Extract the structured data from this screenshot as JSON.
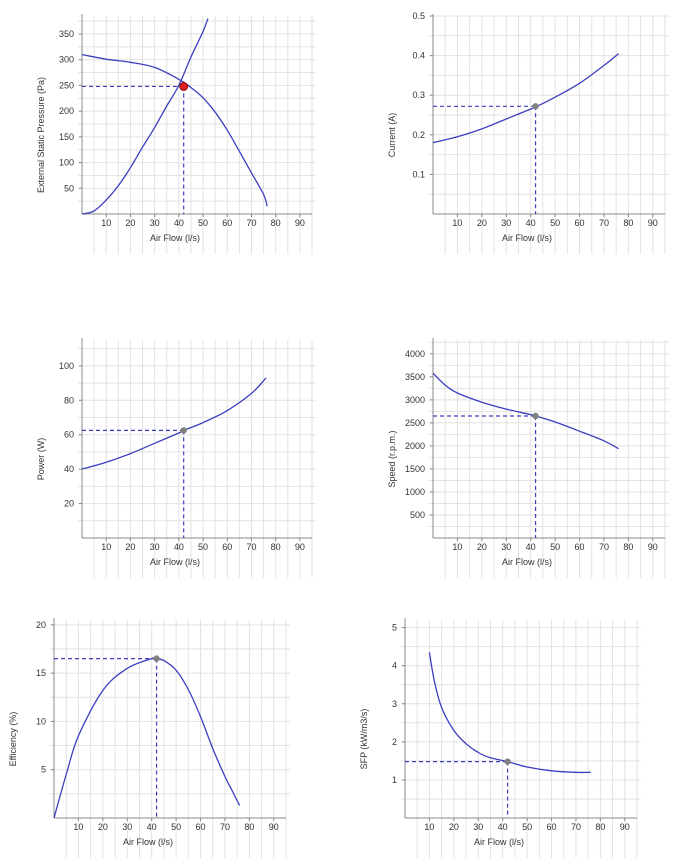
{
  "colors": {
    "curve": "#3b3fbf",
    "grid": "#e2e2e2",
    "axis": "#888888",
    "system_point": "#e02020",
    "duty_point": "#808080",
    "text": "#333333"
  },
  "chart_data": [
    {
      "type": "line",
      "xlabel": "Air Flow (l/s)",
      "ylabel": "External Static Pressure (Pa)",
      "xlim": [
        0,
        95
      ],
      "ylim": [
        0,
        385
      ],
      "xticks": [
        10,
        20,
        30,
        40,
        50,
        60,
        70,
        80,
        90
      ],
      "yticks": [
        50,
        100,
        150,
        200,
        250,
        300,
        350
      ],
      "grid": true,
      "series": [
        {
          "role": "fan curve",
          "x": [
            0,
            10,
            20,
            30,
            40,
            45,
            50,
            55,
            60,
            65,
            70,
            75,
            76.5
          ],
          "y": [
            310,
            301,
            295,
            285,
            262,
            246,
            226,
            198,
            163,
            122,
            80,
            38,
            15
          ]
        },
        {
          "role": "system curve",
          "x": [
            0,
            5,
            10,
            15,
            20,
            25,
            30,
            35,
            40,
            45,
            50,
            52
          ],
          "y": [
            0,
            6,
            27,
            55,
            90,
            130,
            168,
            210,
            250,
            305,
            355,
            380
          ]
        }
      ],
      "point": {
        "x": 42,
        "y": 248,
        "style": "system"
      }
    },
    {
      "type": "line",
      "xlabel": "Air Flow (l/s)",
      "ylabel": "Current (A)",
      "xlim": [
        0,
        95
      ],
      "ylim": [
        0,
        0.5
      ],
      "xticks": [
        10,
        20,
        30,
        40,
        50,
        60,
        70,
        80,
        90
      ],
      "yticks": [
        0.1,
        0.2,
        0.3,
        0.4,
        0.5
      ],
      "grid": true,
      "series": [
        {
          "role": "curve",
          "x": [
            0,
            10,
            20,
            30,
            40,
            42,
            50,
            60,
            70,
            76
          ],
          "y": [
            0.18,
            0.195,
            0.215,
            0.24,
            0.265,
            0.27,
            0.295,
            0.33,
            0.375,
            0.405
          ]
        }
      ],
      "point": {
        "x": 42,
        "y": 0.272,
        "style": "duty"
      }
    },
    {
      "type": "line",
      "xlabel": "Air Flow (l/s)",
      "ylabel": "Power (W)",
      "xlim": [
        0,
        95
      ],
      "ylim": [
        0,
        115
      ],
      "xticks": [
        10,
        20,
        30,
        40,
        50,
        60,
        70,
        80,
        90
      ],
      "yticks": [
        20,
        40,
        60,
        80,
        100
      ],
      "grid": true,
      "series": [
        {
          "role": "curve",
          "x": [
            0,
            10,
            20,
            30,
            40,
            42,
            50,
            60,
            70,
            76
          ],
          "y": [
            40,
            44,
            49,
            55,
            61,
            62.5,
            67,
            74,
            84,
            93
          ]
        }
      ],
      "point": {
        "x": 42,
        "y": 62.5,
        "style": "duty"
      }
    },
    {
      "type": "line",
      "xlabel": "Air Flow (l/s)",
      "ylabel": "Speed (r.p.m.)",
      "xlim": [
        0,
        95
      ],
      "ylim": [
        0,
        4300
      ],
      "xticks": [
        10,
        20,
        30,
        40,
        50,
        60,
        70,
        80,
        90
      ],
      "yticks": [
        500,
        1000,
        1500,
        2000,
        2500,
        3000,
        3500,
        4000
      ],
      "grid": true,
      "series": [
        {
          "role": "curve",
          "x": [
            0,
            5,
            10,
            20,
            30,
            40,
            42,
            50,
            60,
            70,
            76
          ],
          "y": [
            3580,
            3320,
            3150,
            2950,
            2800,
            2680,
            2650,
            2520,
            2320,
            2110,
            1940
          ]
        }
      ],
      "point": {
        "x": 42,
        "y": 2650,
        "style": "duty"
      }
    },
    {
      "type": "line",
      "xlabel": "Air Flow (l/s)",
      "ylabel": "Efficiency (%)",
      "xlim": [
        0,
        95
      ],
      "ylim": [
        0,
        20.5
      ],
      "xticks": [
        10,
        20,
        30,
        40,
        50,
        60,
        70,
        80,
        90
      ],
      "yticks": [
        5,
        10,
        15,
        20
      ],
      "grid": true,
      "series": [
        {
          "role": "curve",
          "x": [
            0,
            5,
            10,
            20,
            30,
            40,
            42,
            45,
            50,
            55,
            60,
            65,
            70,
            73,
            76
          ],
          "y": [
            0,
            4.5,
            8.5,
            13.2,
            15.5,
            16.5,
            16.5,
            16.3,
            15.3,
            13.3,
            10.5,
            7.2,
            4.3,
            2.8,
            1.3
          ]
        }
      ],
      "point": {
        "x": 42,
        "y": 16.5,
        "style": "duty"
      }
    },
    {
      "type": "line",
      "xlabel": "Air Flow (l/s)",
      "ylabel": "SFP (kW/m3/s)",
      "xlim": [
        0,
        95
      ],
      "ylim": [
        0,
        5.2
      ],
      "xticks": [
        10,
        20,
        30,
        40,
        50,
        60,
        70,
        80,
        90
      ],
      "yticks": [
        1,
        2,
        3,
        4,
        5
      ],
      "grid": true,
      "series": [
        {
          "role": "curve",
          "x": [
            10,
            12,
            15,
            20,
            25,
            30,
            35,
            42,
            50,
            60,
            70,
            76
          ],
          "y": [
            4.35,
            3.6,
            2.9,
            2.3,
            1.95,
            1.72,
            1.58,
            1.48,
            1.34,
            1.24,
            1.2,
            1.2
          ]
        }
      ],
      "point": {
        "x": 42,
        "y": 1.48,
        "style": "duty"
      }
    }
  ]
}
